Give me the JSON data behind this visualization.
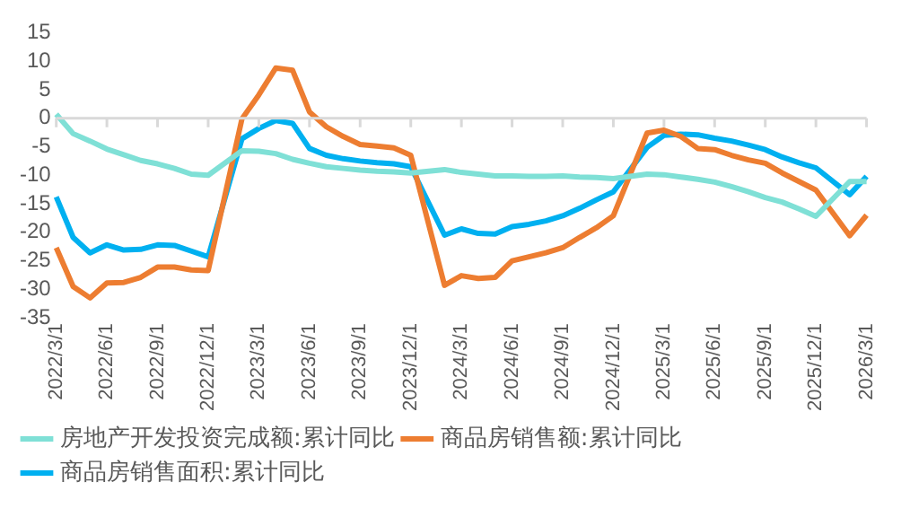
{
  "chart_data": {
    "type": "line",
    "categories": [
      "2022/3/1",
      null,
      null,
      "2022/6/1",
      null,
      null,
      "2022/9/1",
      null,
      null,
      "2022/12/1",
      null,
      null,
      "2023/3/1",
      null,
      null,
      "2023/6/1",
      null,
      null,
      "2023/9/1",
      null,
      null,
      "2023/12/1",
      null,
      null,
      "2024/3/1",
      null,
      null,
      "2024/6/1",
      null,
      null,
      "2024/9/1",
      null,
      null,
      "2024/12/1",
      null,
      null,
      "2025/3/1",
      null,
      null,
      "2025/6/1",
      null,
      null,
      "2025/9/1",
      null,
      null,
      "2025/12/1",
      null,
      null,
      "2026/3/1"
    ],
    "series": [
      {
        "name": "房地产开发投资完成额:累计同比",
        "color": "#7fe0d6",
        "values": [
          0.7,
          -2.7,
          -4,
          -5.4,
          -6.4,
          -7.4,
          -8,
          -8.8,
          -9.8,
          -10,
          null,
          -5.7,
          -5.8,
          -6.2,
          -7.2,
          -7.9,
          -8.5,
          -8.8,
          -9.1,
          -9.3,
          -9.4,
          -9.6,
          null,
          -9,
          -9.5,
          -9.8,
          -10.1,
          -10.1,
          -10.2,
          -10.2,
          -10.1,
          -10.3,
          -10.4,
          -10.6,
          null,
          -9.8,
          -9.9,
          -10.3,
          -10.7,
          -11.2,
          -12,
          -12.9,
          -13.9,
          -14.7,
          -15.9,
          -17.2,
          null,
          -11.1,
          -11.1
        ]
      },
      {
        "name": "商品房销售额:累计同比",
        "color": "#ed7d31",
        "values": [
          -22.7,
          -29.5,
          -31.5,
          -28.9,
          -28.8,
          -27.9,
          -26.1,
          -26.1,
          -26.6,
          -26.7,
          null,
          -0.1,
          4.1,
          8.8,
          8.4,
          1.1,
          -1.5,
          -3.2,
          -4.6,
          -4.9,
          -5.2,
          -6.5,
          null,
          -29.3,
          -27.6,
          -28.1,
          -27.9,
          -25,
          -24.3,
          -23.6,
          -22.7,
          -20.9,
          -19.2,
          -17.1,
          null,
          -2.6,
          -2.1,
          -3.2,
          -5.3,
          -5.5,
          -6.5,
          -7.3,
          -7.9,
          -9.6,
          -11.1,
          -12.6,
          null,
          -20.6,
          -17
        ]
      },
      {
        "name": "商品房销售面积:累计同比",
        "color": "#00b0f0",
        "values": [
          -13.8,
          -20.9,
          -23.6,
          -22.2,
          -23.1,
          -23,
          -22.2,
          -22.3,
          -23.3,
          -24.3,
          null,
          -3.6,
          -1.8,
          -0.4,
          -0.9,
          -5.3,
          -6.5,
          -7.1,
          -7.5,
          -7.8,
          -8,
          -8.5,
          null,
          -20.5,
          -19.4,
          -20.2,
          -20.3,
          -19,
          -18.6,
          -18,
          -17.1,
          -15.8,
          -14.3,
          -12.9,
          null,
          -5.1,
          -3,
          -2.8,
          -2.9,
          -3.5,
          -4,
          -4.7,
          -5.5,
          -6.8,
          -7.8,
          -8.7,
          null,
          -13.4,
          -10.2
        ]
      }
    ],
    "ylim": [
      -35,
      15
    ],
    "yticks": [
      -35,
      -30,
      -25,
      -20,
      -15,
      -10,
      -5,
      0,
      5,
      10,
      15
    ],
    "ref_lines": [
      {
        "axis": "y",
        "value": 0,
        "color": "#d9d9d9"
      }
    ],
    "grid": false,
    "legend": "bottom",
    "marker": "none",
    "line_style": "solid"
  }
}
